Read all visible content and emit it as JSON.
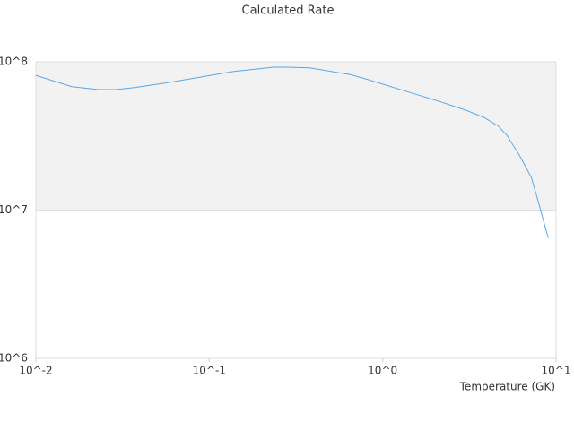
{
  "chart_data": {
    "type": "line",
    "title": "Calculated Rate",
    "x_label": "Temperature (GK)",
    "x": [
      0.01,
      0.0161,
      0.023,
      0.029,
      0.037,
      0.056,
      0.096,
      0.137,
      0.235,
      0.28,
      0.38,
      0.65,
      0.82,
      1.32,
      2.13,
      3.04,
      3.86,
      4.62,
      5.2,
      6.2,
      7.2,
      7.9,
      9.0
    ],
    "series": [
      {
        "name": "Rate",
        "color": "#5aa6e8",
        "values": [
          81000000,
          68000000,
          65000000,
          65000000,
          67000000,
          72000000,
          80000000,
          86000000,
          92000000,
          92000000,
          91000000,
          82000000,
          76000000,
          64000000,
          54000000,
          47000000,
          42000000,
          37000000,
          32000000,
          23000000,
          16600000,
          11400000,
          6500000
        ]
      }
    ],
    "x_log": true,
    "y_log": true,
    "xlim": [
      0.01,
      10
    ],
    "ylim": [
      1000000,
      100000000
    ],
    "xticks": [
      {
        "value": 0.01,
        "label": "10^-2"
      },
      {
        "value": 0.1,
        "label": "10^-1"
      },
      {
        "value": 1,
        "label": "10^0"
      },
      {
        "value": 10,
        "label": "10^1"
      }
    ],
    "yticks": [
      {
        "value": 1000000,
        "label": "10^6"
      },
      {
        "value": 10000000,
        "label": "10^7"
      },
      {
        "value": 100000000,
        "label": "10^8"
      }
    ],
    "grid": true
  }
}
